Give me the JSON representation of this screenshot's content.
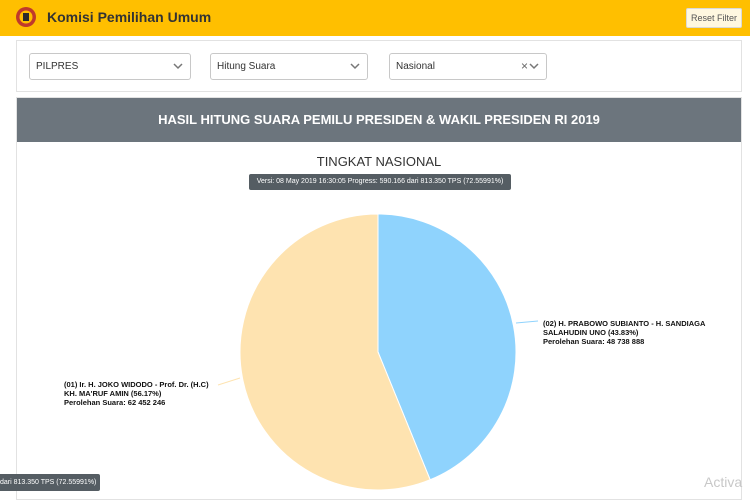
{
  "header": {
    "app_title": "Komisi Pemilihan Umum",
    "reset_label": "Reset Filter",
    "brand_color": "#ffbf00"
  },
  "filters": {
    "election_type": "PILPRES",
    "count_type": "Hitung Suara",
    "region": "Nasional"
  },
  "result": {
    "title": "HASIL HITUNG SUARA PEMILU PRESIDEN & WAKIL PRESIDEN RI 2019",
    "subtitle": "TINGKAT NASIONAL",
    "version_text": "Versi: 08 May 2019 16:30:05 Progress: 590.166 dari 813.350 TPS (72.55991%)",
    "bottom_tooltip": "dari 813.350 TPS (72.55991%)",
    "watermark": "Activa"
  },
  "chart_data": {
    "type": "pie",
    "title": "TINGKAT NASIONAL",
    "slices": [
      {
        "label_line1": "(02) H. PRABOWO SUBIANTO - H. SANDIAGA",
        "label_line2": "SALAHUDIN UNO (43.83%)",
        "votes_text": "Perolehan Suara: 48 738 888",
        "percent": 43.83,
        "value": 48738888,
        "color": "#8fd3fd"
      },
      {
        "label_line1": "(01) Ir. H. JOKO WIDODO - Prof. Dr. (H.C)",
        "label_line2": "KH. MA'RUF AMIN (56.17%)",
        "votes_text": "Perolehan Suara: 62 452 246",
        "percent": 56.17,
        "value": 62452246,
        "color": "#fee3b0"
      }
    ]
  }
}
